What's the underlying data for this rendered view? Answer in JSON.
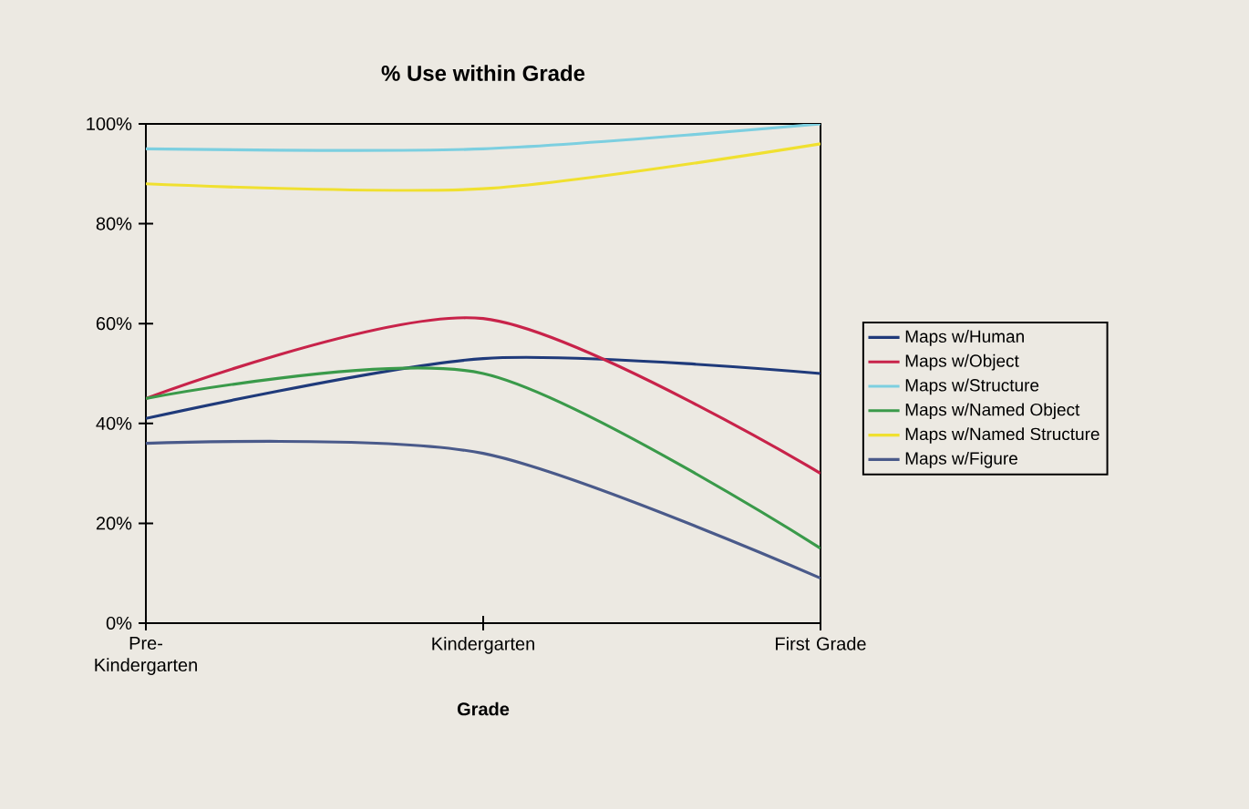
{
  "chart_data": {
    "type": "line",
    "title": "% Use within Grade",
    "xlabel": "Grade",
    "categories": [
      "Pre-Kindergarten",
      "Kindergarten",
      "First Grade"
    ],
    "series": [
      {
        "name": "Maps w/Human",
        "color": "#1f3a7a",
        "values": [
          41,
          53,
          50
        ]
      },
      {
        "name": "Maps w/Object",
        "color": "#c8234a",
        "values": [
          45,
          61,
          30
        ]
      },
      {
        "name": "Maps w/Structure",
        "color": "#7ccfe0",
        "values": [
          95,
          95,
          100
        ]
      },
      {
        "name": "Maps w/Named Object",
        "color": "#3a9a4a",
        "values": [
          45,
          50,
          15
        ]
      },
      {
        "name": "Maps w/Named Structure",
        "color": "#f0e030",
        "values": [
          88,
          87,
          96
        ]
      },
      {
        "name": "Maps w/Figure",
        "color": "#4a5a8a",
        "values": [
          36,
          34,
          9
        ]
      }
    ],
    "ylim": [
      0,
      100
    ],
    "yticks": [
      {
        "value": 0,
        "label": "0%"
      },
      {
        "value": 20,
        "label": "20%"
      },
      {
        "value": 40,
        "label": "40%"
      },
      {
        "value": 60,
        "label": "60%"
      },
      {
        "value": 80,
        "label": "80%"
      },
      {
        "value": 100,
        "label": "100%"
      }
    ],
    "grid": false,
    "legend": "right",
    "marker": "none",
    "line_style": "solid"
  }
}
